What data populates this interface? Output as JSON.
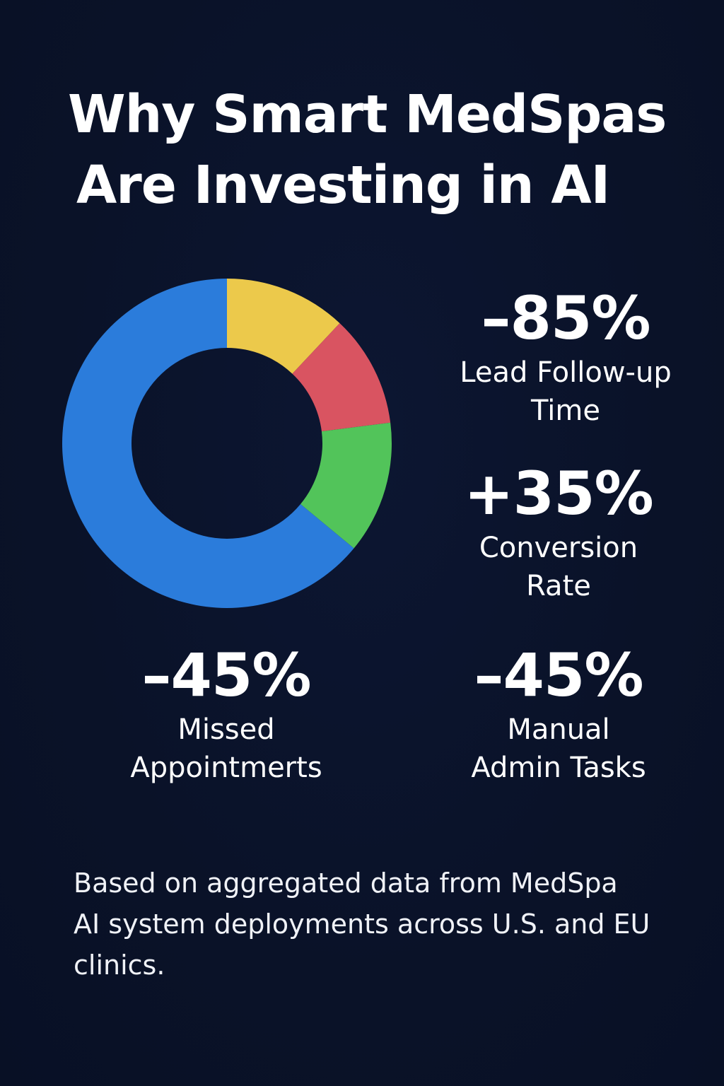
{
  "title_line1": "Why Smart MedSpas",
  "title_line2": "Are Investing in AI",
  "chart_data": {
    "type": "pie",
    "donut": true,
    "slices": [
      {
        "value": 12,
        "color": "#ecc94b"
      },
      {
        "value": 11,
        "color": "#d95461"
      },
      {
        "value": 13,
        "color": "#52c45a"
      },
      {
        "value": 64,
        "color": "#2b7cdb"
      }
    ],
    "start_angle_deg": 0,
    "direction": "clockwise"
  },
  "stats": [
    {
      "value": "–85%",
      "label": "Lead Follow-up\nTime"
    },
    {
      "value": "+35%",
      "label": "Conversion\nRate"
    },
    {
      "value": "–45%",
      "label": "Missed\nAppointmerts"
    },
    {
      "value": "–45%",
      "label": "Manual\nAdmin Tasks"
    }
  ],
  "footnote": "Based on aggregated data from MedSpa\nAI system deployments across U.S. and EU\nclinics.",
  "colors": {
    "background": "#0b1329",
    "text": "#ffffff"
  }
}
